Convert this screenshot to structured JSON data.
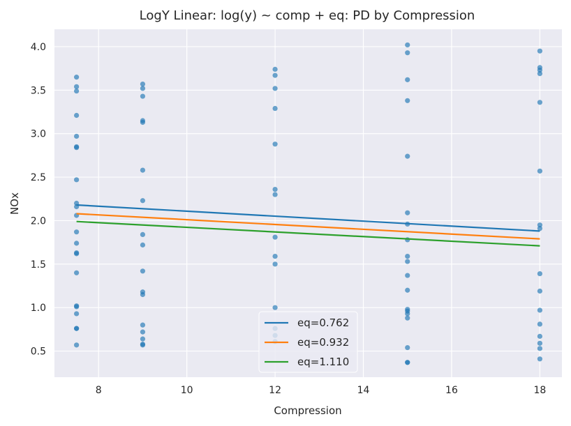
{
  "chart_data": {
    "type": "scatter",
    "title": "LogY Linear: log(y) ~ comp + eq: PD by Compression",
    "xlabel": "Compression",
    "ylabel": "NOx",
    "xlim": [
      7,
      18.5
    ],
    "ylim": [
      0.2,
      4.2
    ],
    "x_ticks": [
      8,
      10,
      12,
      14,
      16,
      18
    ],
    "y_ticks": [
      0.5,
      1.0,
      1.5,
      2.0,
      2.5,
      3.0,
      3.5,
      4.0
    ],
    "grid": true,
    "legend_position": "lower-center",
    "colors": {
      "background": "#eaeaf2",
      "grid": "#ffffff",
      "points": "#1f77b4",
      "text": "#262626"
    },
    "points": [
      {
        "x": 7.5,
        "y": [
          3.65,
          3.54,
          3.49,
          3.21,
          2.97,
          2.85,
          2.84,
          2.47,
          2.2,
          2.16,
          2.06,
          1.87,
          1.74,
          1.63,
          1.62,
          1.4,
          1.02,
          1.01,
          0.93,
          0.76,
          0.76,
          0.57
        ]
      },
      {
        "x": 9,
        "y": [
          3.57,
          3.52,
          3.43,
          3.15,
          3.13,
          2.58,
          2.23,
          1.84,
          1.72,
          1.42,
          1.18,
          1.15,
          0.8,
          0.72,
          0.64,
          0.58,
          0.57
        ]
      },
      {
        "x": 12,
        "y": [
          3.74,
          3.67,
          3.52,
          3.29,
          2.88,
          2.36,
          2.3,
          1.81,
          1.59,
          1.5,
          1.0,
          0.76,
          0.68,
          0.61
        ]
      },
      {
        "x": 15,
        "y": [
          4.02,
          3.93,
          3.62,
          3.38,
          2.74,
          2.09,
          1.96,
          1.78,
          1.59,
          1.53,
          1.37,
          1.2,
          0.98,
          0.96,
          0.93,
          0.88,
          0.54,
          0.37,
          0.37
        ]
      },
      {
        "x": 18,
        "y": [
          3.95,
          3.76,
          3.73,
          3.69,
          3.36,
          2.57,
          1.95,
          1.91,
          1.39,
          1.19,
          0.97,
          0.81,
          0.67,
          0.59,
          0.53,
          0.41
        ]
      }
    ],
    "series": [
      {
        "name": "eq=0.762",
        "color": "#1f77b4",
        "x": [
          7.5,
          18
        ],
        "y": [
          2.18,
          1.88
        ]
      },
      {
        "name": "eq=0.932",
        "color": "#ff7f0e",
        "x": [
          7.5,
          18
        ],
        "y": [
          2.08,
          1.79
        ]
      },
      {
        "name": "eq=1.110",
        "color": "#2ca02c",
        "x": [
          7.5,
          18
        ],
        "y": [
          1.99,
          1.71
        ]
      }
    ]
  }
}
